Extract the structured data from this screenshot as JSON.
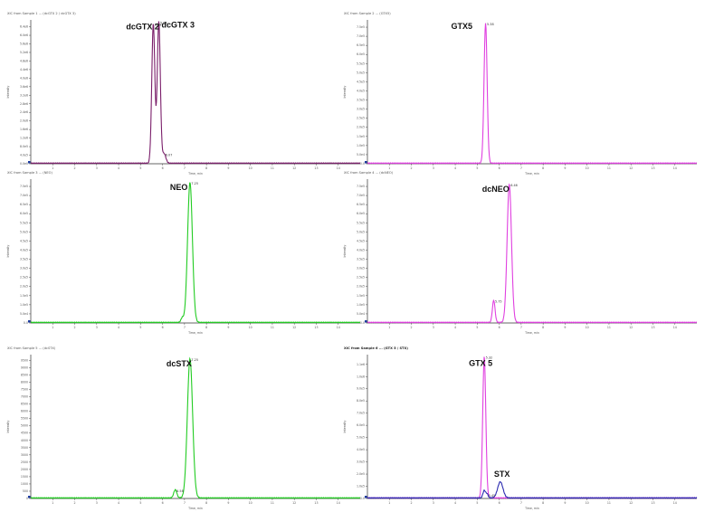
{
  "chart_data": [
    {
      "type": "line",
      "title": "XIC from Sample 1 ... (dcGTX 2 / dcGTX 3)",
      "peak_labels": [
        "dcGTX 2",
        "dcGTX 3"
      ],
      "xlabel": "Time, min",
      "ylabel": "Intensity",
      "xlim": [
        0,
        15
      ],
      "ylim": [
        0,
        6.8
      ],
      "x_ticks": [
        "1",
        "2",
        "3",
        "4",
        "5",
        "6",
        "7",
        "8",
        "9",
        "10",
        "11",
        "12",
        "13",
        "14"
      ],
      "y_ticks": [
        "0.0e0",
        "4.0e5",
        "8.0e5",
        "1.2e6",
        "1.6e6",
        "2.0e6",
        "2.4e6",
        "2.8e6",
        "3.2e6",
        "3.6e6",
        "4.0e6",
        "4.4e6",
        "4.8e6",
        "5.2e6",
        "5.6e6",
        "6.0e6",
        "6.4e6"
      ],
      "peak_rts": [
        "5.58",
        "5.83",
        "6.07"
      ],
      "series": [
        {
          "color": "#7a1e6a",
          "peaks": [
            {
              "rt": 5.58,
              "height": 6.6,
              "width": 0.07
            },
            {
              "rt": 5.83,
              "height": 6.7,
              "width": 0.07
            },
            {
              "rt": 6.07,
              "height": 0.45,
              "width": 0.08
            }
          ]
        }
      ]
    },
    {
      "type": "line",
      "title": "XIC from Sample 2 ... (GTX5)",
      "peak_labels": [
        "GTX5"
      ],
      "xlabel": "Time, min",
      "ylabel": "Intensity",
      "xlim": [
        0,
        15
      ],
      "ylim": [
        0,
        7.8
      ],
      "x_ticks": [
        "1",
        "2",
        "3",
        "4",
        "5",
        "6",
        "7",
        "8",
        "9",
        "10",
        "11",
        "12",
        "13",
        "14"
      ],
      "y_ticks": [
        "0.0",
        "5.0e4",
        "1.0e5",
        "1.5e5",
        "2.0e5",
        "2.5e5",
        "3.0e5",
        "3.5e5",
        "4.0e5",
        "4.5e5",
        "5.0e5",
        "5.5e5",
        "6.0e5",
        "6.5e5",
        "7.0e5",
        "7.5e5"
      ],
      "peak_rts": [
        "5.38"
      ],
      "series": [
        {
          "color": "#e040e0",
          "peaks": [
            {
              "rt": 5.38,
              "height": 7.6,
              "width": 0.07
            }
          ]
        }
      ]
    },
    {
      "type": "line",
      "title": "XIC from Sample 3 ... (NEO)",
      "peak_labels": [
        "NEO"
      ],
      "xlabel": "Time, min",
      "ylabel": "Intensity",
      "xlim": [
        0,
        15
      ],
      "ylim": [
        0,
        7.8
      ],
      "x_ticks": [
        "1",
        "2",
        "3",
        "4",
        "5",
        "6",
        "7",
        "8",
        "9",
        "10",
        "11",
        "12",
        "13",
        "14"
      ],
      "y_ticks": [
        "0.0",
        "5.0e4",
        "1.0e5",
        "1.5e5",
        "2.0e5",
        "2.5e5",
        "3.0e5",
        "3.5e5",
        "4.0e5",
        "4.5e5",
        "5.0e5",
        "5.5e5",
        "6.0e5",
        "6.5e5",
        "7.0e5",
        "7.5e5"
      ],
      "peak_rts": [
        "7.25"
      ],
      "series": [
        {
          "color": "#22cc22",
          "peaks": [
            {
              "rt": 7.25,
              "height": 7.6,
              "width": 0.11
            },
            {
              "rt": 6.9,
              "height": 0.25,
              "width": 0.06
            }
          ]
        }
      ]
    },
    {
      "type": "line",
      "title": "XIC from Sample 4 ... (dcNEO)",
      "peak_labels": [
        "dcNEO"
      ],
      "xlabel": "Time, min",
      "ylabel": "Intensity",
      "xlim": [
        0,
        15
      ],
      "ylim": [
        0,
        7.8
      ],
      "x_ticks": [
        "1",
        "2",
        "3",
        "4",
        "5",
        "6",
        "7",
        "8",
        "9",
        "10",
        "11",
        "12",
        "13",
        "14"
      ],
      "y_ticks": [
        "0.0",
        "5.0e4",
        "1.0e5",
        "1.5e5",
        "2.0e5",
        "2.5e5",
        "3.0e5",
        "3.5e5",
        "4.0e5",
        "4.5e5",
        "5.0e5",
        "5.5e5",
        "6.0e5",
        "6.5e5",
        "7.0e5",
        "7.5e5"
      ],
      "peak_rts": [
        "5.75",
        "6.46"
      ],
      "series": [
        {
          "color": "#e040e0",
          "peaks": [
            {
              "rt": 6.46,
              "height": 7.5,
              "width": 0.1
            },
            {
              "rt": 5.75,
              "height": 1.2,
              "width": 0.06
            }
          ]
        }
      ]
    },
    {
      "type": "line",
      "title": "XIC from Sample 5 ... (dcSTX)",
      "peak_labels": [
        "dcSTX"
      ],
      "xlabel": "Time, min",
      "ylabel": "Intensity",
      "xlim": [
        0,
        15
      ],
      "ylim": [
        0,
        9.6
      ],
      "x_ticks": [
        "1",
        "2",
        "3",
        "4",
        "5",
        "6",
        "7",
        "8",
        "9",
        "10",
        "11",
        "12",
        "13",
        "14"
      ],
      "y_ticks": [
        "0",
        "500",
        "1000",
        "1500",
        "2000",
        "2500",
        "3000",
        "3500",
        "4000",
        "4500",
        "5000",
        "5500",
        "6000",
        "6500",
        "7000",
        "7500",
        "8000",
        "8500",
        "9000",
        "9500"
      ],
      "peak_rts": [
        "6.58",
        "7.25"
      ],
      "series": [
        {
          "color": "#22cc22",
          "peaks": [
            {
              "rt": 7.25,
              "height": 9.3,
              "width": 0.12
            },
            {
              "rt": 6.58,
              "height": 0.55,
              "width": 0.07
            }
          ]
        }
      ]
    },
    {
      "type": "line",
      "title": "XIC from Sample 6 ... (GTX 5 / STX)",
      "peak_labels": [
        "GTX 5",
        "STX"
      ],
      "xlabel": "Time, min",
      "ylabel": "Intensity",
      "xlim": [
        0,
        15
      ],
      "ylim": [
        0,
        11.6
      ],
      "x_ticks": [
        "1",
        "2",
        "3",
        "4",
        "5",
        "6",
        "7",
        "8",
        "9",
        "10",
        "11",
        "12",
        "13",
        "14"
      ],
      "y_ticks": [
        "0.0",
        "1.0e5",
        "2.0e5",
        "3.0e5",
        "4.0e5",
        "5.0e5",
        "6.0e5",
        "7.0e5",
        "8.0e5",
        "9.0e5",
        "1.0e6",
        "1.1e6"
      ],
      "peak_rts": [
        "5.32",
        "5.45"
      ],
      "series": [
        {
          "color": "#e040e0",
          "peaks": [
            {
              "rt": 5.32,
              "height": 11.4,
              "width": 0.07
            }
          ]
        },
        {
          "color": "#2a2ab0",
          "peaks": [
            {
              "rt": 5.32,
              "height": 0.6,
              "width": 0.06
            },
            {
              "rt": 6.05,
              "height": 1.3,
              "width": 0.12
            },
            {
              "rt": 5.45,
              "height": 0.3,
              "width": 0.05
            }
          ]
        }
      ]
    }
  ]
}
